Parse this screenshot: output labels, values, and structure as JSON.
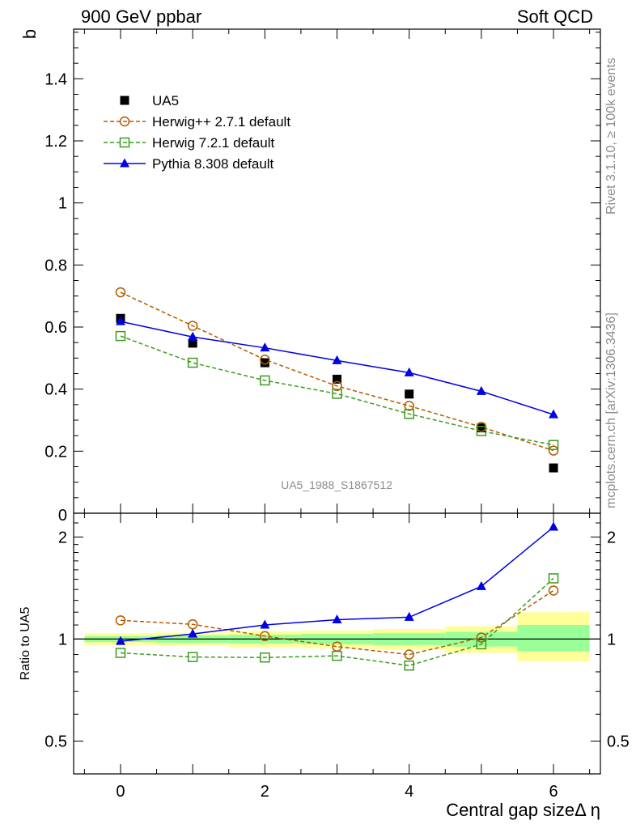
{
  "header": {
    "left": "900 GeV ppbar",
    "right": "Soft QCD"
  },
  "side_labels": {
    "rivet": "Rivet 3.1.10, ≥ 100k events",
    "mcplots": "mcplots.cern.ch [arXiv:1306.3436]"
  },
  "watermark": "UA5_1988_S1867512",
  "colors": {
    "ua5": "#000000",
    "herwigpp": "#b25a00",
    "herwig7": "#3c9b1e",
    "pythia": "#0000e6",
    "band_outer": "#ffff99",
    "band_inner": "#99ff99"
  },
  "chart_data": [
    {
      "type": "scatter",
      "ylabel": "b",
      "xlim": [
        -0.65,
        6.65
      ],
      "ylim": [
        0,
        1.56
      ],
      "yticks": [
        0.2,
        0.4,
        0.6,
        0.8,
        1,
        1.2,
        1.4
      ],
      "ytick_labels": [
        "0.2",
        "0.4",
        "0.6",
        "0.8",
        "1",
        "1.2",
        "1.4"
      ],
      "bottom_tick_label": "0",
      "x": [
        0,
        1,
        2,
        3,
        4,
        5,
        6
      ],
      "series": [
        {
          "name": "UA5",
          "marker": "filled-square",
          "values": [
            0.628,
            0.548,
            0.485,
            0.432,
            0.384,
            0.275,
            0.146
          ]
        },
        {
          "name": "Herwig++ 2.7.1 default",
          "marker": "open-circle",
          "line": "dashed",
          "values": [
            0.712,
            0.604,
            0.495,
            0.41,
            0.346,
            0.278,
            0.202
          ]
        },
        {
          "name": "Herwig 7.2.1 default",
          "marker": "open-square",
          "line": "dashed",
          "values": [
            0.571,
            0.485,
            0.428,
            0.385,
            0.32,
            0.265,
            0.22
          ]
        },
        {
          "name": "Pythia 8.308 default",
          "marker": "filled-triangle",
          "line": "solid",
          "values": [
            0.618,
            0.568,
            0.533,
            0.492,
            0.453,
            0.393,
            0.318
          ]
        }
      ],
      "legend_position": "top-left"
    },
    {
      "type": "scatter",
      "ylabel": "Ratio to UA5",
      "xlabel": "Central gap sizeΔ η",
      "xlim": [
        -0.65,
        6.65
      ],
      "ylim": [
        0.4,
        2.35
      ],
      "yscale": "log",
      "yticks": [
        0.5,
        1,
        2
      ],
      "ytick_labels": [
        "0.5",
        "1",
        "2"
      ],
      "xticks": [
        0,
        2,
        4,
        6
      ],
      "xtick_labels": [
        "0",
        "2",
        "4",
        "6"
      ],
      "x": [
        0,
        1,
        2,
        3,
        4,
        5,
        6
      ],
      "uncertainty_band": {
        "edges": [
          -0.5,
          0.5,
          1.5,
          2.5,
          3.5,
          4.5,
          5.5,
          6.5
        ],
        "outer": [
          [
            0.96,
            1.04
          ],
          [
            0.955,
            1.045
          ],
          [
            0.945,
            1.055
          ],
          [
            0.94,
            1.06
          ],
          [
            0.93,
            1.07
          ],
          [
            0.91,
            1.09
          ],
          [
            0.86,
            1.2
          ]
        ],
        "inner": [
          [
            0.98,
            1.02
          ],
          [
            0.975,
            1.025
          ],
          [
            0.97,
            1.03
          ],
          [
            0.965,
            1.035
          ],
          [
            0.96,
            1.04
          ],
          [
            0.95,
            1.05
          ],
          [
            0.92,
            1.1
          ]
        ]
      },
      "series": [
        {
          "name": "Herwig++ 2.7.1 default",
          "marker": "open-circle",
          "line": "dashed",
          "values": [
            1.135,
            1.105,
            1.02,
            0.95,
            0.9,
            1.01,
            1.39
          ]
        },
        {
          "name": "Herwig 7.2.1 default",
          "marker": "open-square",
          "line": "dashed",
          "values": [
            0.91,
            0.885,
            0.882,
            0.892,
            0.835,
            0.965,
            1.51
          ]
        },
        {
          "name": "Pythia 8.308 default",
          "marker": "filled-triangle",
          "line": "solid",
          "values": [
            0.985,
            1.035,
            1.1,
            1.14,
            1.16,
            1.43,
            2.14
          ]
        }
      ]
    }
  ]
}
